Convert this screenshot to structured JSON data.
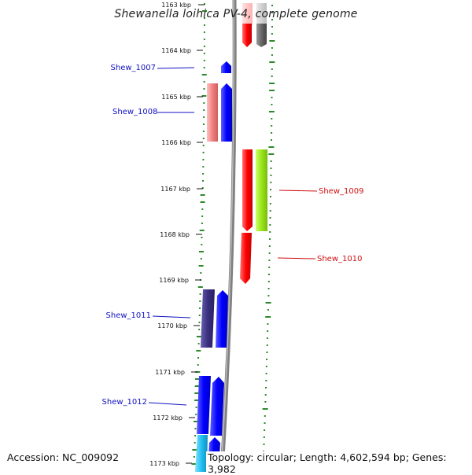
{
  "title": "Shewanella loihica PV-4, complete genome",
  "footer": {
    "accession": "Accession: NC_009092",
    "summary": "Topology: circular; Length: 4,602,594 bp; Genes: 3,982"
  },
  "ticks": [
    {
      "label": "1163 kbp"
    },
    {
      "label": "1164 kbp"
    },
    {
      "label": "1165 kbp"
    },
    {
      "label": "1166 kbp"
    },
    {
      "label": "1167 kbp"
    },
    {
      "label": "1168 kbp"
    },
    {
      "label": "1169 kbp"
    },
    {
      "label": "1170 kbp"
    },
    {
      "label": "1171 kbp"
    },
    {
      "label": "1172 kbp"
    },
    {
      "label": "1173 kbp"
    }
  ],
  "labels": [
    {
      "name": "Shew_1007",
      "color": "#1010c0"
    },
    {
      "name": "Shew_1008",
      "color": "#1010c0"
    },
    {
      "name": "Shew_1009",
      "color": "#d01010"
    },
    {
      "name": "Shew_1010",
      "color": "#d01010"
    },
    {
      "name": "Shew_1011",
      "color": "#1010c0"
    },
    {
      "name": "Shew_1012",
      "color": "#1010c0"
    }
  ],
  "colors": {
    "gc_dots": "#2a8a2a",
    "backbone": "#808080",
    "gene_minus": "#0000ff",
    "gene_plus": "#ff0000",
    "cog_pink": "#f08080",
    "cog_gray": "#666666",
    "cog_green": "#99e619",
    "cog_navy": "#3a3080",
    "cog_cyan": "#22c0f0"
  }
}
